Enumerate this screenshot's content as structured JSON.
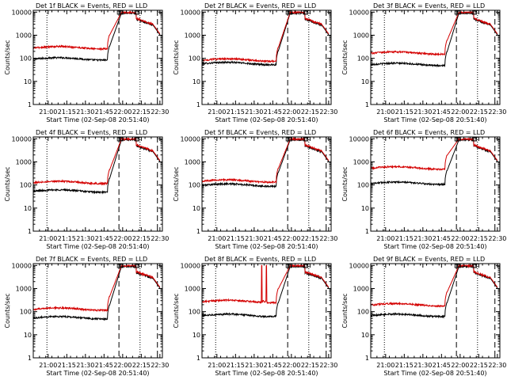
{
  "ylabel": "Counts/sec",
  "xlabel": "Start Time (02-Sep-08 20:51:40)",
  "yticks": [
    {
      "value": 1,
      "label": "1"
    },
    {
      "value": 10,
      "label": "10"
    },
    {
      "value": 100,
      "label": "100"
    },
    {
      "value": 1000,
      "label": "1000"
    },
    {
      "value": 10000,
      "label": "10000"
    }
  ],
  "xticks": [
    {
      "value": 9,
      "label": "21:00"
    },
    {
      "value": 24,
      "label": "21:15"
    },
    {
      "value": 39,
      "label": "21:30"
    },
    {
      "value": 54,
      "label": "21:45"
    },
    {
      "value": 69,
      "label": "22:00"
    },
    {
      "value": 84,
      "label": "22:15"
    },
    {
      "value": 99,
      "label": "22:30"
    }
  ],
  "colors": {
    "events": "#000000",
    "lld": "#d40000",
    "axes": "#000000",
    "background": "#ffffff"
  },
  "chart_data": [
    {
      "type": "line",
      "title": "Det 1f BLACK = Events, RED = LLD",
      "xlim": [
        -3,
        101
      ],
      "ylim": [
        1,
        12000
      ],
      "yscale": "log",
      "rise_start": 57,
      "peak_end": 80,
      "dashed_lines": [
        66,
        97
      ],
      "dotted_lines": [
        8,
        83
      ],
      "series": [
        {
          "name": "Events",
          "base": 95
        },
        {
          "name": "LLD",
          "base": 290
        }
      ]
    },
    {
      "type": "line",
      "title": "Det 2f BLACK = Events, RED = LLD",
      "xlim": [
        -3,
        101
      ],
      "ylim": [
        1,
        12000
      ],
      "yscale": "log",
      "rise_start": 57,
      "peak_end": 80,
      "dashed_lines": [
        66,
        97
      ],
      "dotted_lines": [
        8,
        83
      ],
      "series": [
        {
          "name": "Events",
          "base": 60
        },
        {
          "name": "LLD",
          "base": 85
        }
      ]
    },
    {
      "type": "line",
      "title": "Det 3f BLACK = Events, RED = LLD",
      "xlim": [
        -3,
        101
      ],
      "ylim": [
        1,
        12000
      ],
      "yscale": "log",
      "rise_start": 57,
      "peak_end": 80,
      "dashed_lines": [
        66,
        97
      ],
      "dotted_lines": [
        8,
        83
      ],
      "series": [
        {
          "name": "Events",
          "base": 55
        },
        {
          "name": "LLD",
          "base": 170
        }
      ]
    },
    {
      "type": "line",
      "title": "Det 4f BLACK = Events, RED = LLD",
      "xlim": [
        -3,
        101
      ],
      "ylim": [
        1,
        12000
      ],
      "yscale": "log",
      "rise_start": 57,
      "peak_end": 80,
      "dashed_lines": [
        66,
        97
      ],
      "dotted_lines": [
        8,
        83
      ],
      "series": [
        {
          "name": "Events",
          "base": 55
        },
        {
          "name": "LLD",
          "base": 130
        }
      ]
    },
    {
      "type": "line",
      "title": "Det 5f BLACK = Events, RED = LLD",
      "xlim": [
        -3,
        101
      ],
      "ylim": [
        1,
        12000
      ],
      "yscale": "log",
      "rise_start": 57,
      "peak_end": 80,
      "dashed_lines": [
        66,
        97
      ],
      "dotted_lines": [
        8,
        83
      ],
      "series": [
        {
          "name": "Events",
          "base": 100
        },
        {
          "name": "LLD",
          "base": 150
        }
      ]
    },
    {
      "type": "line",
      "title": "Det 6f BLACK = Events, RED = LLD",
      "xlim": [
        -3,
        101
      ],
      "ylim": [
        1,
        12000
      ],
      "yscale": "log",
      "rise_start": 57,
      "peak_end": 80,
      "dashed_lines": [
        66,
        97
      ],
      "dotted_lines": [
        8,
        83
      ],
      "series": [
        {
          "name": "Events",
          "base": 120
        },
        {
          "name": "LLD",
          "base": 550
        }
      ]
    },
    {
      "type": "line",
      "title": "Det 7f BLACK = Events, RED = LLD",
      "xlim": [
        -3,
        101
      ],
      "ylim": [
        1,
        12000
      ],
      "yscale": "log",
      "rise_start": 57,
      "peak_end": 80,
      "dashed_lines": [
        66,
        97
      ],
      "dotted_lines": [
        8,
        83
      ],
      "series": [
        {
          "name": "Events",
          "base": 55
        },
        {
          "name": "LLD",
          "base": 130
        }
      ]
    },
    {
      "type": "line",
      "title": "Det 8f BLACK = Events, RED = LLD",
      "xlim": [
        -3,
        101
      ],
      "ylim": [
        1,
        12000
      ],
      "yscale": "log",
      "rise_start": 57,
      "peak_end": 80,
      "dashed_lines": [
        66,
        97
      ],
      "dotted_lines": [
        8,
        83
      ],
      "spike": {
        "x": [
          45,
          49
        ],
        "value": 10000
      },
      "series": [
        {
          "name": "Events",
          "base": 70
        },
        {
          "name": "LLD",
          "base": 280
        }
      ]
    },
    {
      "type": "line",
      "title": "Det 9f BLACK = Events, RED = LLD",
      "xlim": [
        -3,
        101
      ],
      "ylim": [
        1,
        12000
      ],
      "yscale": "log",
      "rise_start": 57,
      "peak_end": 80,
      "dashed_lines": [
        66,
        97
      ],
      "dotted_lines": [
        8,
        83
      ],
      "series": [
        {
          "name": "Events",
          "base": 70
        },
        {
          "name": "LLD",
          "base": 200
        }
      ]
    }
  ]
}
